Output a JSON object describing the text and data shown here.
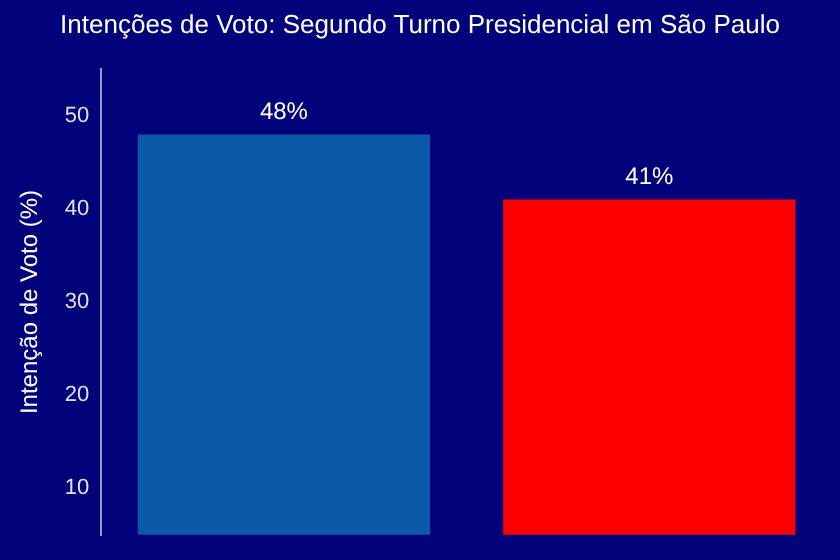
{
  "chart_data": {
    "type": "bar",
    "title": "Intenções de Voto: Segundo Turno Presidencial em São Paulo",
    "ylabel": "Intenção de Voto (%)",
    "categories": [
      null,
      null
    ],
    "values": [
      48,
      41
    ],
    "colors": [
      "#0a5aa8",
      "#ff0000"
    ],
    "value_labels": [
      "48%",
      "41%"
    ],
    "ylim": [
      5,
      55
    ],
    "yticks": [
      10,
      20,
      30,
      40,
      50
    ],
    "grid": false,
    "legend": false,
    "tick_labels": "y"
  }
}
